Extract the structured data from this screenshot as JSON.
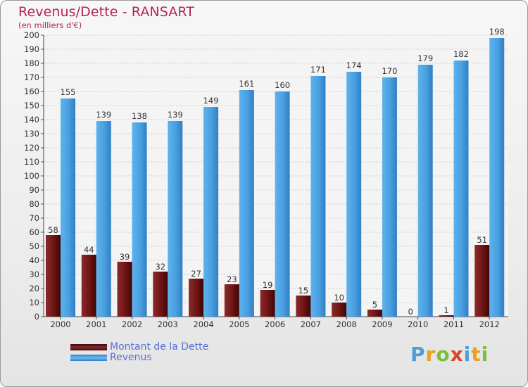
{
  "chart_data": {
    "type": "bar",
    "title": "Revenus/Dette - RANSART",
    "subtitle": "(en milliers d'€)",
    "xlabel": "",
    "ylabel": "",
    "ylim": [
      0,
      200
    ],
    "yticks": [
      0,
      10,
      20,
      30,
      40,
      50,
      60,
      70,
      80,
      90,
      100,
      110,
      120,
      130,
      140,
      150,
      160,
      170,
      180,
      190,
      200
    ],
    "grid": true,
    "legend_position": "bottom-left",
    "categories": [
      "2000",
      "2001",
      "2002",
      "2003",
      "2004",
      "2005",
      "2006",
      "2007",
      "2008",
      "2009",
      "2010",
      "2011",
      "2012"
    ],
    "series": [
      {
        "name": "Montant de la Dette",
        "color": "#7a1f1f",
        "values": [
          58,
          44,
          39,
          32,
          27,
          23,
          19,
          15,
          10,
          5,
          0,
          1,
          51
        ]
      },
      {
        "name": "Revenus",
        "color": "#4ea6e6",
        "values": [
          155,
          139,
          138,
          139,
          149,
          161,
          160,
          171,
          174,
          170,
          179,
          182,
          198
        ]
      }
    ]
  },
  "legend": {
    "debt_label": "Montant de la Dette",
    "revenue_label": "Revenus"
  },
  "logo": {
    "letters": [
      "P",
      "r",
      "o",
      "x",
      "i",
      "t",
      "i"
    ]
  }
}
